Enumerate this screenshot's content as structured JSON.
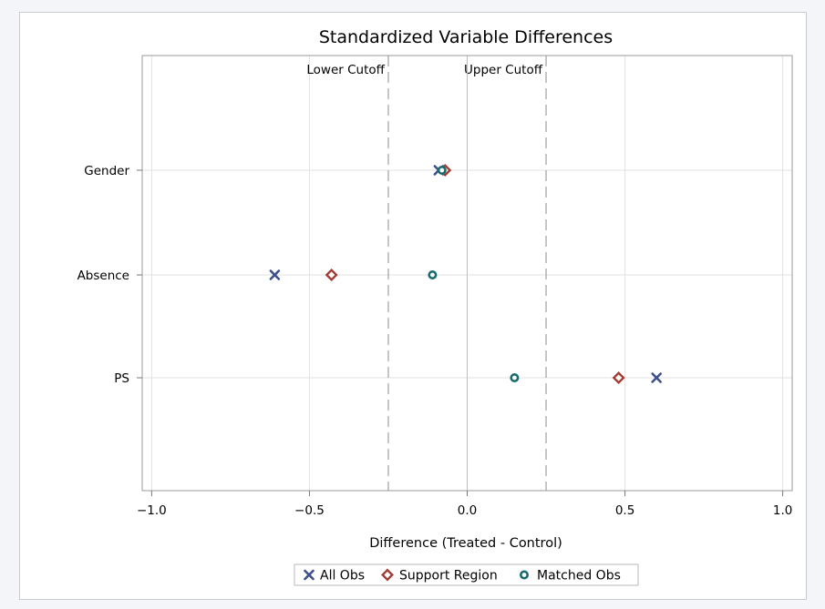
{
  "chart_data": {
    "type": "scatter",
    "orientation": "horizontal",
    "title": "Standardized Variable Differences",
    "xlabel": "Difference (Treated - Control)",
    "ylabel": "",
    "xlim": [
      -1.03,
      1.03
    ],
    "xticks": [
      -1.0,
      -0.5,
      0.0,
      0.5,
      1.0
    ],
    "xtick_labels": [
      "−1.0",
      "−0.5",
      "0.0",
      "0.5",
      "1.0"
    ],
    "categories": [
      "Gender",
      "Absence",
      "PS"
    ],
    "grid": true,
    "reference_lines": [
      {
        "label": "Lower Cutoff",
        "x": -0.25,
        "style": "dashed"
      },
      {
        "label": "Upper Cutoff",
        "x": 0.25,
        "style": "dashed"
      },
      {
        "label": "",
        "x": 0.0,
        "style": "solid"
      }
    ],
    "series": [
      {
        "name": "All Obs",
        "marker": "x",
        "color": "#3d4f8f",
        "values": [
          -0.09,
          -0.61,
          0.6
        ]
      },
      {
        "name": "Support Region",
        "marker": "diamond",
        "color": "#a33c34",
        "values": [
          -0.07,
          -0.43,
          0.48
        ]
      },
      {
        "name": "Matched Obs",
        "marker": "circle",
        "color": "#1a6b6b",
        "values": [
          -0.08,
          -0.11,
          0.15
        ]
      }
    ],
    "legend_position": "bottom"
  }
}
